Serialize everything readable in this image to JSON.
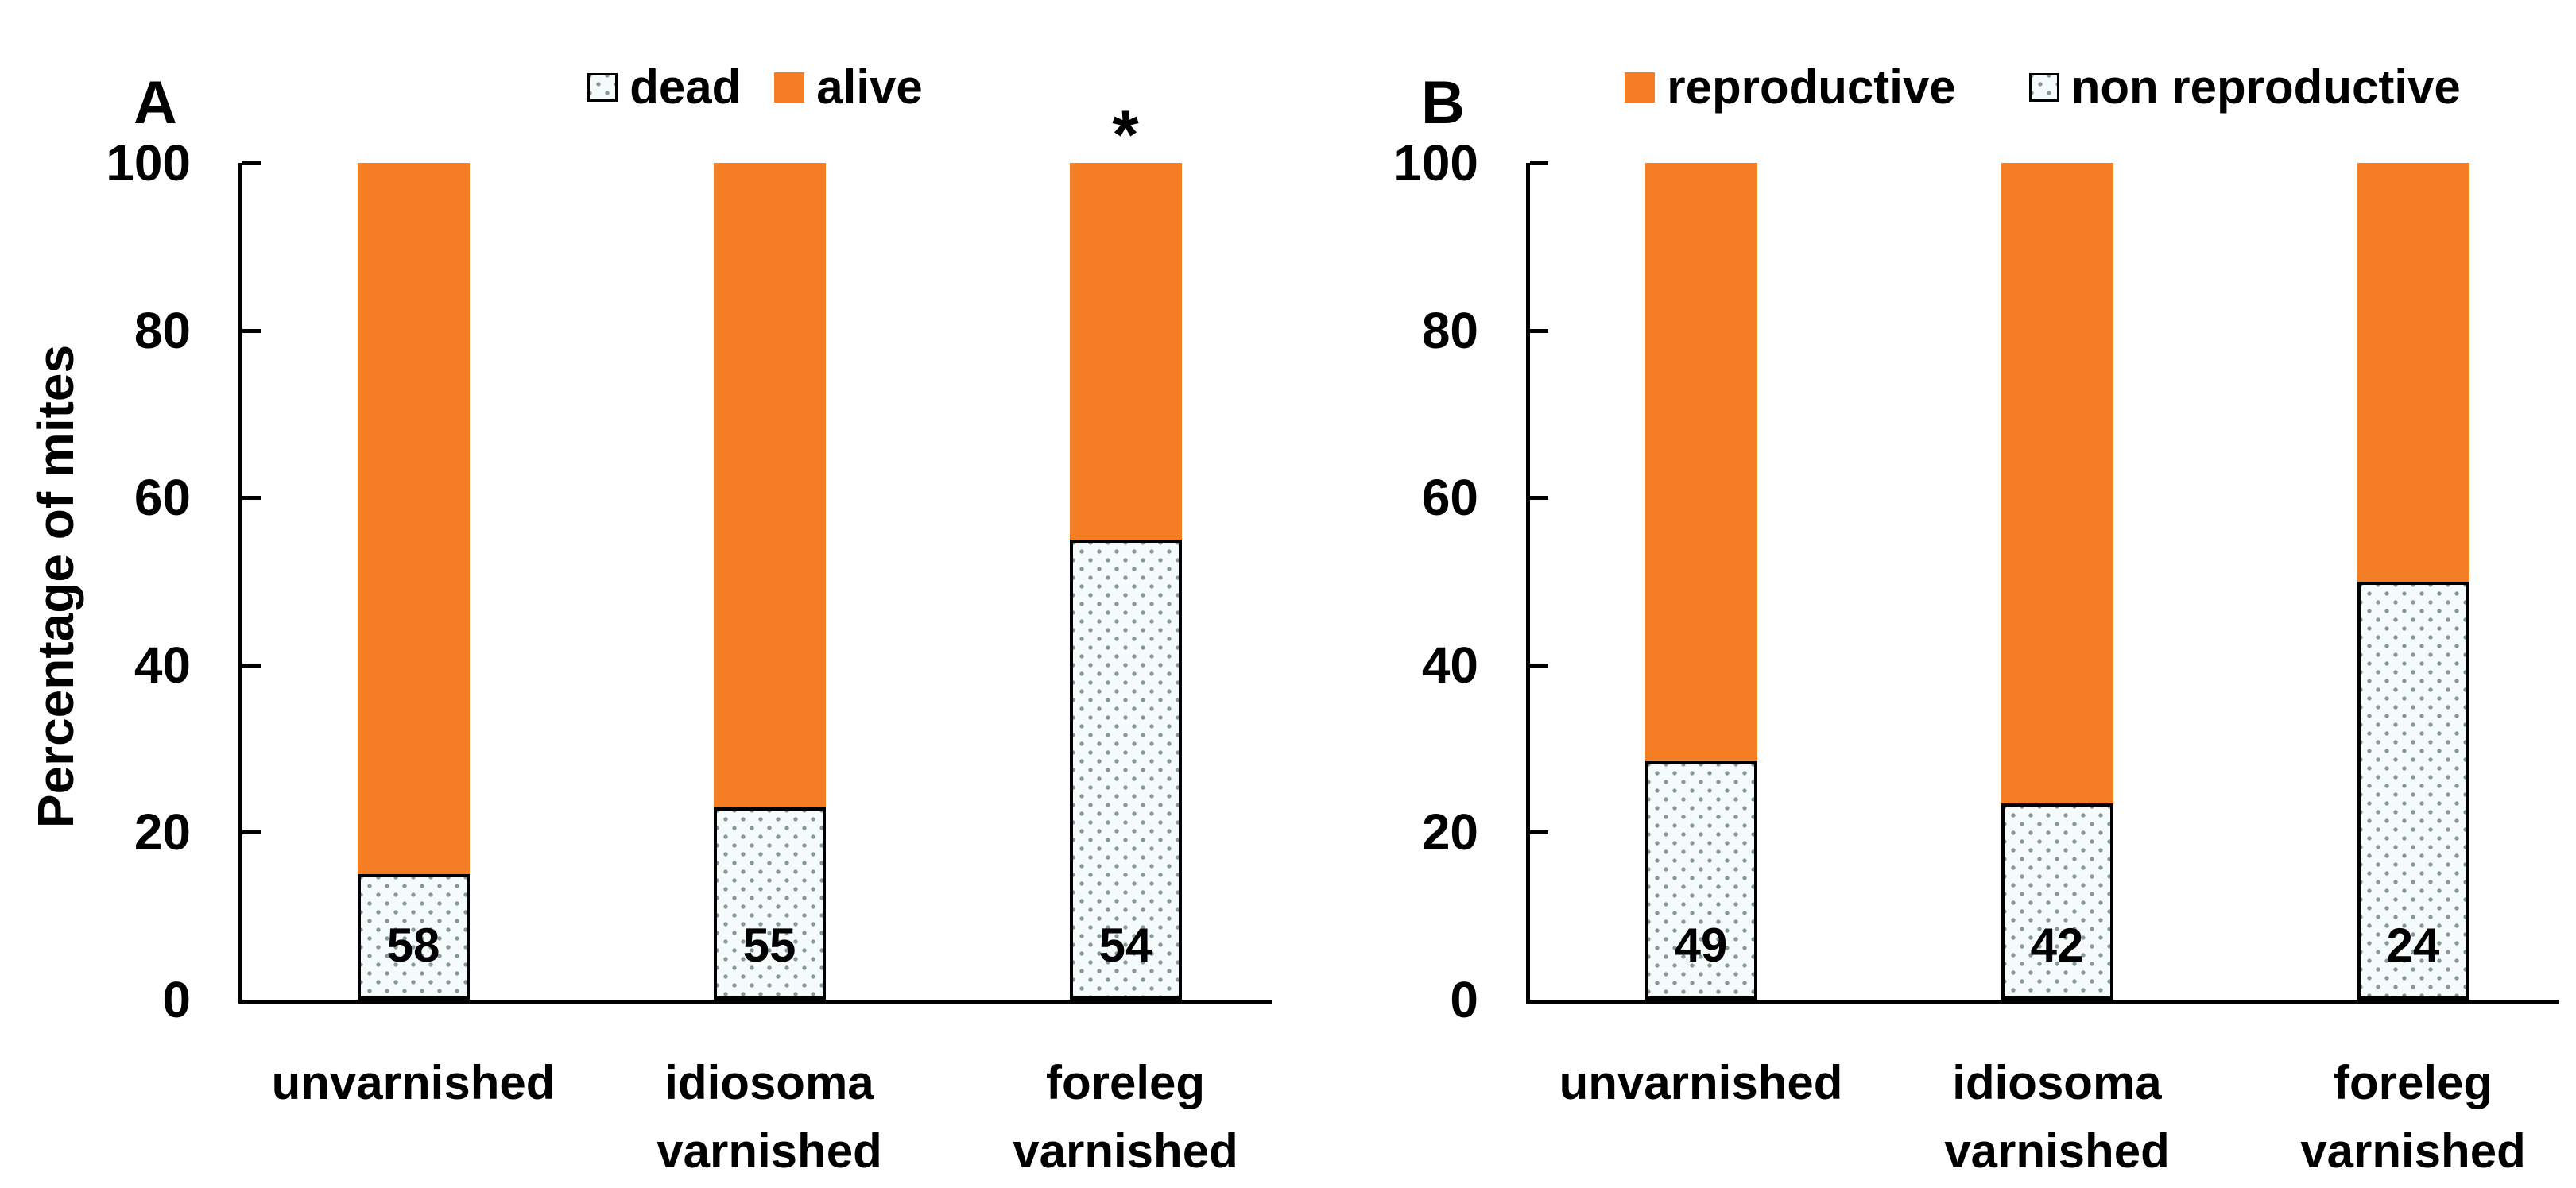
{
  "colors": {
    "solid_fill": "#F57E24",
    "dotted_dot": "#87989A",
    "dotted_bg": "#F5FAFA",
    "axis": "#000000"
  },
  "chart_data": [
    {
      "type": "bar",
      "stacked": true,
      "panel": "A",
      "categories": [
        "unvarnished",
        "idiosoma varnished",
        "foreleg varnished"
      ],
      "series": [
        {
          "name": "dead",
          "fill": "dotted",
          "values": [
            15,
            23,
            55
          ]
        },
        {
          "name": "alive",
          "fill": "solid",
          "values": [
            85,
            77,
            45
          ]
        }
      ],
      "bar_labels": [
        "58",
        "55",
        "54"
      ],
      "annotations": [
        {
          "category_index": 2,
          "text": "*"
        }
      ],
      "ylabel": "Percentage of mites",
      "ylim": [
        0,
        100
      ],
      "yticks": [
        0,
        20,
        40,
        60,
        80,
        100
      ],
      "legend_position": "top",
      "grid": false
    },
    {
      "type": "bar",
      "stacked": true,
      "panel": "B",
      "categories": [
        "unvarnished",
        "idiosoma varnished",
        "foreleg varnished"
      ],
      "series": [
        {
          "name": "non reproductive",
          "fill": "dotted",
          "values": [
            28.5,
            23.5,
            50
          ]
        },
        {
          "name": "reproductive",
          "fill": "solid",
          "values": [
            71.5,
            76.5,
            50
          ]
        }
      ],
      "bar_labels": [
        "49",
        "42",
        "24"
      ],
      "annotations": [],
      "ylabel": "",
      "ylim": [
        0,
        100
      ],
      "yticks": [
        0,
        20,
        40,
        60,
        80,
        100
      ],
      "legend_position": "top",
      "grid": false
    }
  ]
}
